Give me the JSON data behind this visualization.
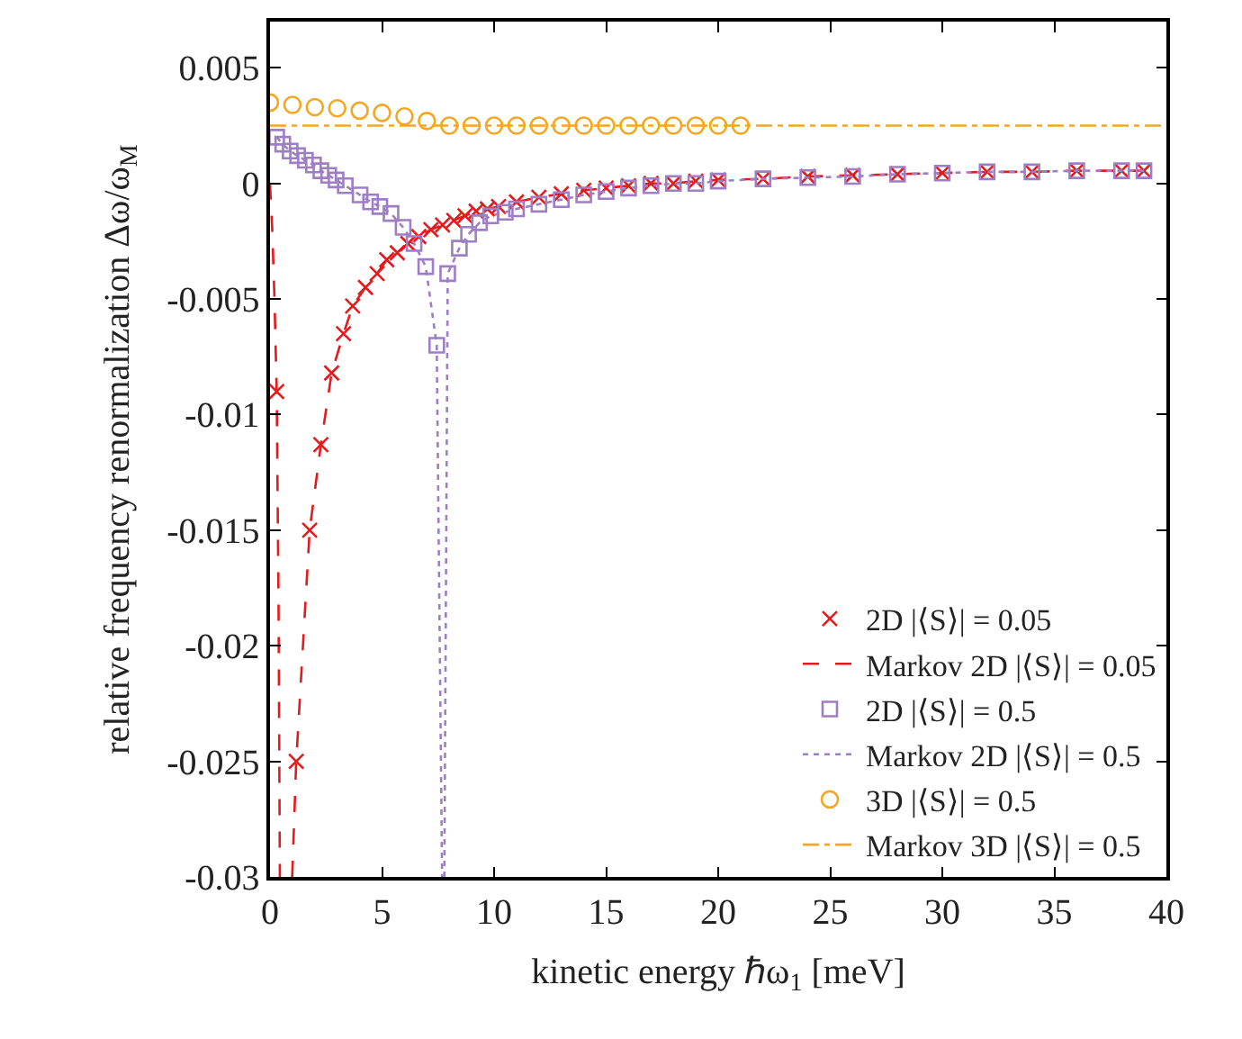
{
  "chart_data": {
    "type": "line",
    "xlabel": "kinetic energy ℏω$_{1}$ [meV]",
    "ylabel": "relative frequency renormalization Δω/ω$_{M}$",
    "xlim": [
      0,
      40
    ],
    "xticks": [
      0,
      5,
      10,
      15,
      20,
      25,
      30,
      35,
      40
    ],
    "ylim": [
      -0.03,
      0.007
    ],
    "yticks": [
      -0.03,
      -0.025,
      -0.02,
      -0.015,
      -0.01,
      -0.005,
      0,
      0.005
    ],
    "grid": false,
    "legend": "bottom right",
    "series": [
      {
        "name": "2D |⟨S⟩| = 0.05",
        "type": "scatter",
        "marker": "cross",
        "color": "#e41a1c",
        "x": [
          0.3,
          1.17,
          1.77,
          2.27,
          2.75,
          3.28,
          3.69,
          4.26,
          4.78,
          5.21,
          5.68,
          6.15,
          6.64,
          7.18,
          7.7,
          8.2,
          8.7,
          9.2,
          9.7,
          10.2,
          11,
          12,
          13,
          14,
          15,
          16,
          17,
          18,
          19,
          20,
          22,
          24,
          26,
          28,
          30,
          32,
          34,
          36,
          38,
          39
        ],
        "values": [
          -0.009,
          -0.025,
          -0.015,
          -0.0113,
          -0.0082,
          -0.0065,
          -0.0053,
          -0.0045,
          -0.0039,
          -0.0033,
          -0.003,
          -0.0026,
          -0.0023,
          -0.002,
          -0.0018,
          -0.0016,
          -0.0014,
          -0.0012,
          -0.0011,
          -0.001,
          -0.0008,
          -0.0006,
          -0.00045,
          -0.0003,
          -0.0002,
          -0.0001,
          0,
          0,
          0.0001,
          0.00015,
          0.0002,
          0.0003,
          0.00035,
          0.0004,
          0.00045,
          0.0005,
          0.0005,
          0.00055,
          0.00055,
          0.00055
        ]
      },
      {
        "name": "Markov 2D |⟨S⟩| = 0.05",
        "marker": "none",
        "line_style": "dashed",
        "color": "#e41a1c",
        "x": [
          0,
          0.1,
          0.2,
          0.3,
          0.38,
          0.44,
          null,
          0.99,
          1.17,
          1.77,
          2.27,
          2.75,
          3.28,
          3.69,
          4.26,
          4.78,
          5.21,
          5.68,
          6.15,
          6.64,
          7.18,
          7.7,
          8.2,
          8.7,
          9.2,
          9.7,
          10.2,
          11,
          12,
          13,
          14,
          15,
          16,
          17,
          18,
          19,
          20,
          22,
          24,
          26,
          28,
          30,
          32,
          34,
          36,
          38,
          39
        ],
        "values": [
          0,
          -0.002,
          -0.005,
          -0.009,
          -0.018,
          -0.03,
          null,
          -0.03,
          -0.025,
          -0.015,
          -0.0113,
          -0.0082,
          -0.0065,
          -0.0053,
          -0.0045,
          -0.0039,
          -0.0033,
          -0.003,
          -0.0026,
          -0.0023,
          -0.002,
          -0.0018,
          -0.0016,
          -0.0014,
          -0.0012,
          -0.0011,
          -0.001,
          -0.0008,
          -0.0006,
          -0.00045,
          -0.0003,
          -0.0002,
          -0.0001,
          0,
          0,
          0.0001,
          0.00015,
          0.0002,
          0.0003,
          0.00035,
          0.0004,
          0.00045,
          0.0005,
          0.0005,
          0.00055,
          0.00055,
          0.00055
        ]
      },
      {
        "name": "2D |⟨S⟩| = 0.5",
        "type": "scatter",
        "marker": "square",
        "color": "#9e7fc4",
        "x": [
          0.3,
          0.57,
          0.9,
          1.23,
          1.58,
          1.94,
          2.27,
          2.62,
          2.95,
          3.36,
          4.02,
          4.49,
          4.9,
          5.4,
          5.94,
          6.43,
          6.95,
          7.44,
          7.93,
          8.45,
          8.86,
          9.35,
          9.85,
          10.5,
          11,
          12,
          13,
          14,
          15,
          16,
          17,
          18,
          19,
          20,
          22,
          24,
          26,
          28,
          30,
          32,
          34,
          36,
          38,
          39
        ],
        "values": [
          0.002,
          0.0017,
          0.0014,
          0.0012,
          0.001,
          0.0008,
          0.00055,
          0.00035,
          0.00015,
          -0.0001,
          -0.0005,
          -0.0008,
          -0.001,
          -0.0013,
          -0.0019,
          -0.0026,
          -0.0036,
          -0.007,
          -0.0039,
          -0.0028,
          -0.0022,
          -0.0017,
          -0.0014,
          -0.00125,
          -0.0011,
          -0.0009,
          -0.0007,
          -0.0005,
          -0.00035,
          -0.0002,
          -0.0001,
          0,
          0,
          0.0001,
          0.0002,
          0.00025,
          0.0003,
          0.0004,
          0.00045,
          0.0005,
          0.0005,
          0.00055,
          0.00055,
          0.00055
        ]
      },
      {
        "name": "Markov 2D |⟨S⟩| = 0.5",
        "marker": "none",
        "line_style": "dotted",
        "color": "#9e7fc4",
        "x": [
          0.3,
          0.57,
          0.9,
          1.23,
          1.58,
          1.94,
          2.27,
          2.62,
          2.95,
          3.36,
          4.02,
          4.49,
          4.9,
          5.4,
          5.94,
          6.43,
          6.95,
          7.44,
          7.68,
          null,
          7.78,
          7.93,
          8.45,
          8.86,
          9.35,
          9.85,
          10.5,
          11,
          12,
          13,
          14,
          15,
          16,
          17,
          18,
          19,
          20,
          22,
          24,
          26,
          28,
          30,
          32,
          34,
          36,
          38,
          39
        ],
        "values": [
          0.002,
          0.0017,
          0.0014,
          0.0012,
          0.001,
          0.0008,
          0.00055,
          0.00035,
          0.00015,
          -0.0001,
          -0.0005,
          -0.0008,
          -0.001,
          -0.0013,
          -0.0019,
          -0.0026,
          -0.0036,
          -0.007,
          -0.03,
          null,
          -0.03,
          -0.0039,
          -0.0028,
          -0.0022,
          -0.0017,
          -0.0014,
          -0.00125,
          -0.0011,
          -0.0009,
          -0.0007,
          -0.0005,
          -0.00035,
          -0.0002,
          -0.0001,
          0,
          0,
          0.0001,
          0.0002,
          0.00025,
          0.0003,
          0.0004,
          0.00045,
          0.0005,
          0.0005,
          0.00055,
          0.00055,
          0.00055
        ]
      },
      {
        "name": "3D |⟨S⟩| = 0.5",
        "type": "scatter",
        "marker": "circle",
        "color": "#f5a623",
        "x": [
          0,
          1,
          2,
          3,
          4,
          5,
          6,
          7,
          8,
          9,
          10,
          11,
          12,
          13,
          14,
          15,
          16,
          17,
          18,
          19,
          20,
          21
        ],
        "values": [
          0.0035,
          0.0034,
          0.0033,
          0.00325,
          0.00315,
          0.00305,
          0.0029,
          0.0027,
          0.0025,
          0.0025,
          0.0025,
          0.0025,
          0.0025,
          0.0025,
          0.0025,
          0.0025,
          0.0025,
          0.0025,
          0.0025,
          0.0025,
          0.0025,
          0.0025
        ]
      },
      {
        "name": "Markov 3D |⟨S⟩| = 0.5",
        "marker": "none",
        "line_style": "dashdot",
        "color": "#f5a623",
        "x": [
          0,
          40
        ],
        "values": [
          0.0025,
          0.0025
        ]
      }
    ]
  }
}
